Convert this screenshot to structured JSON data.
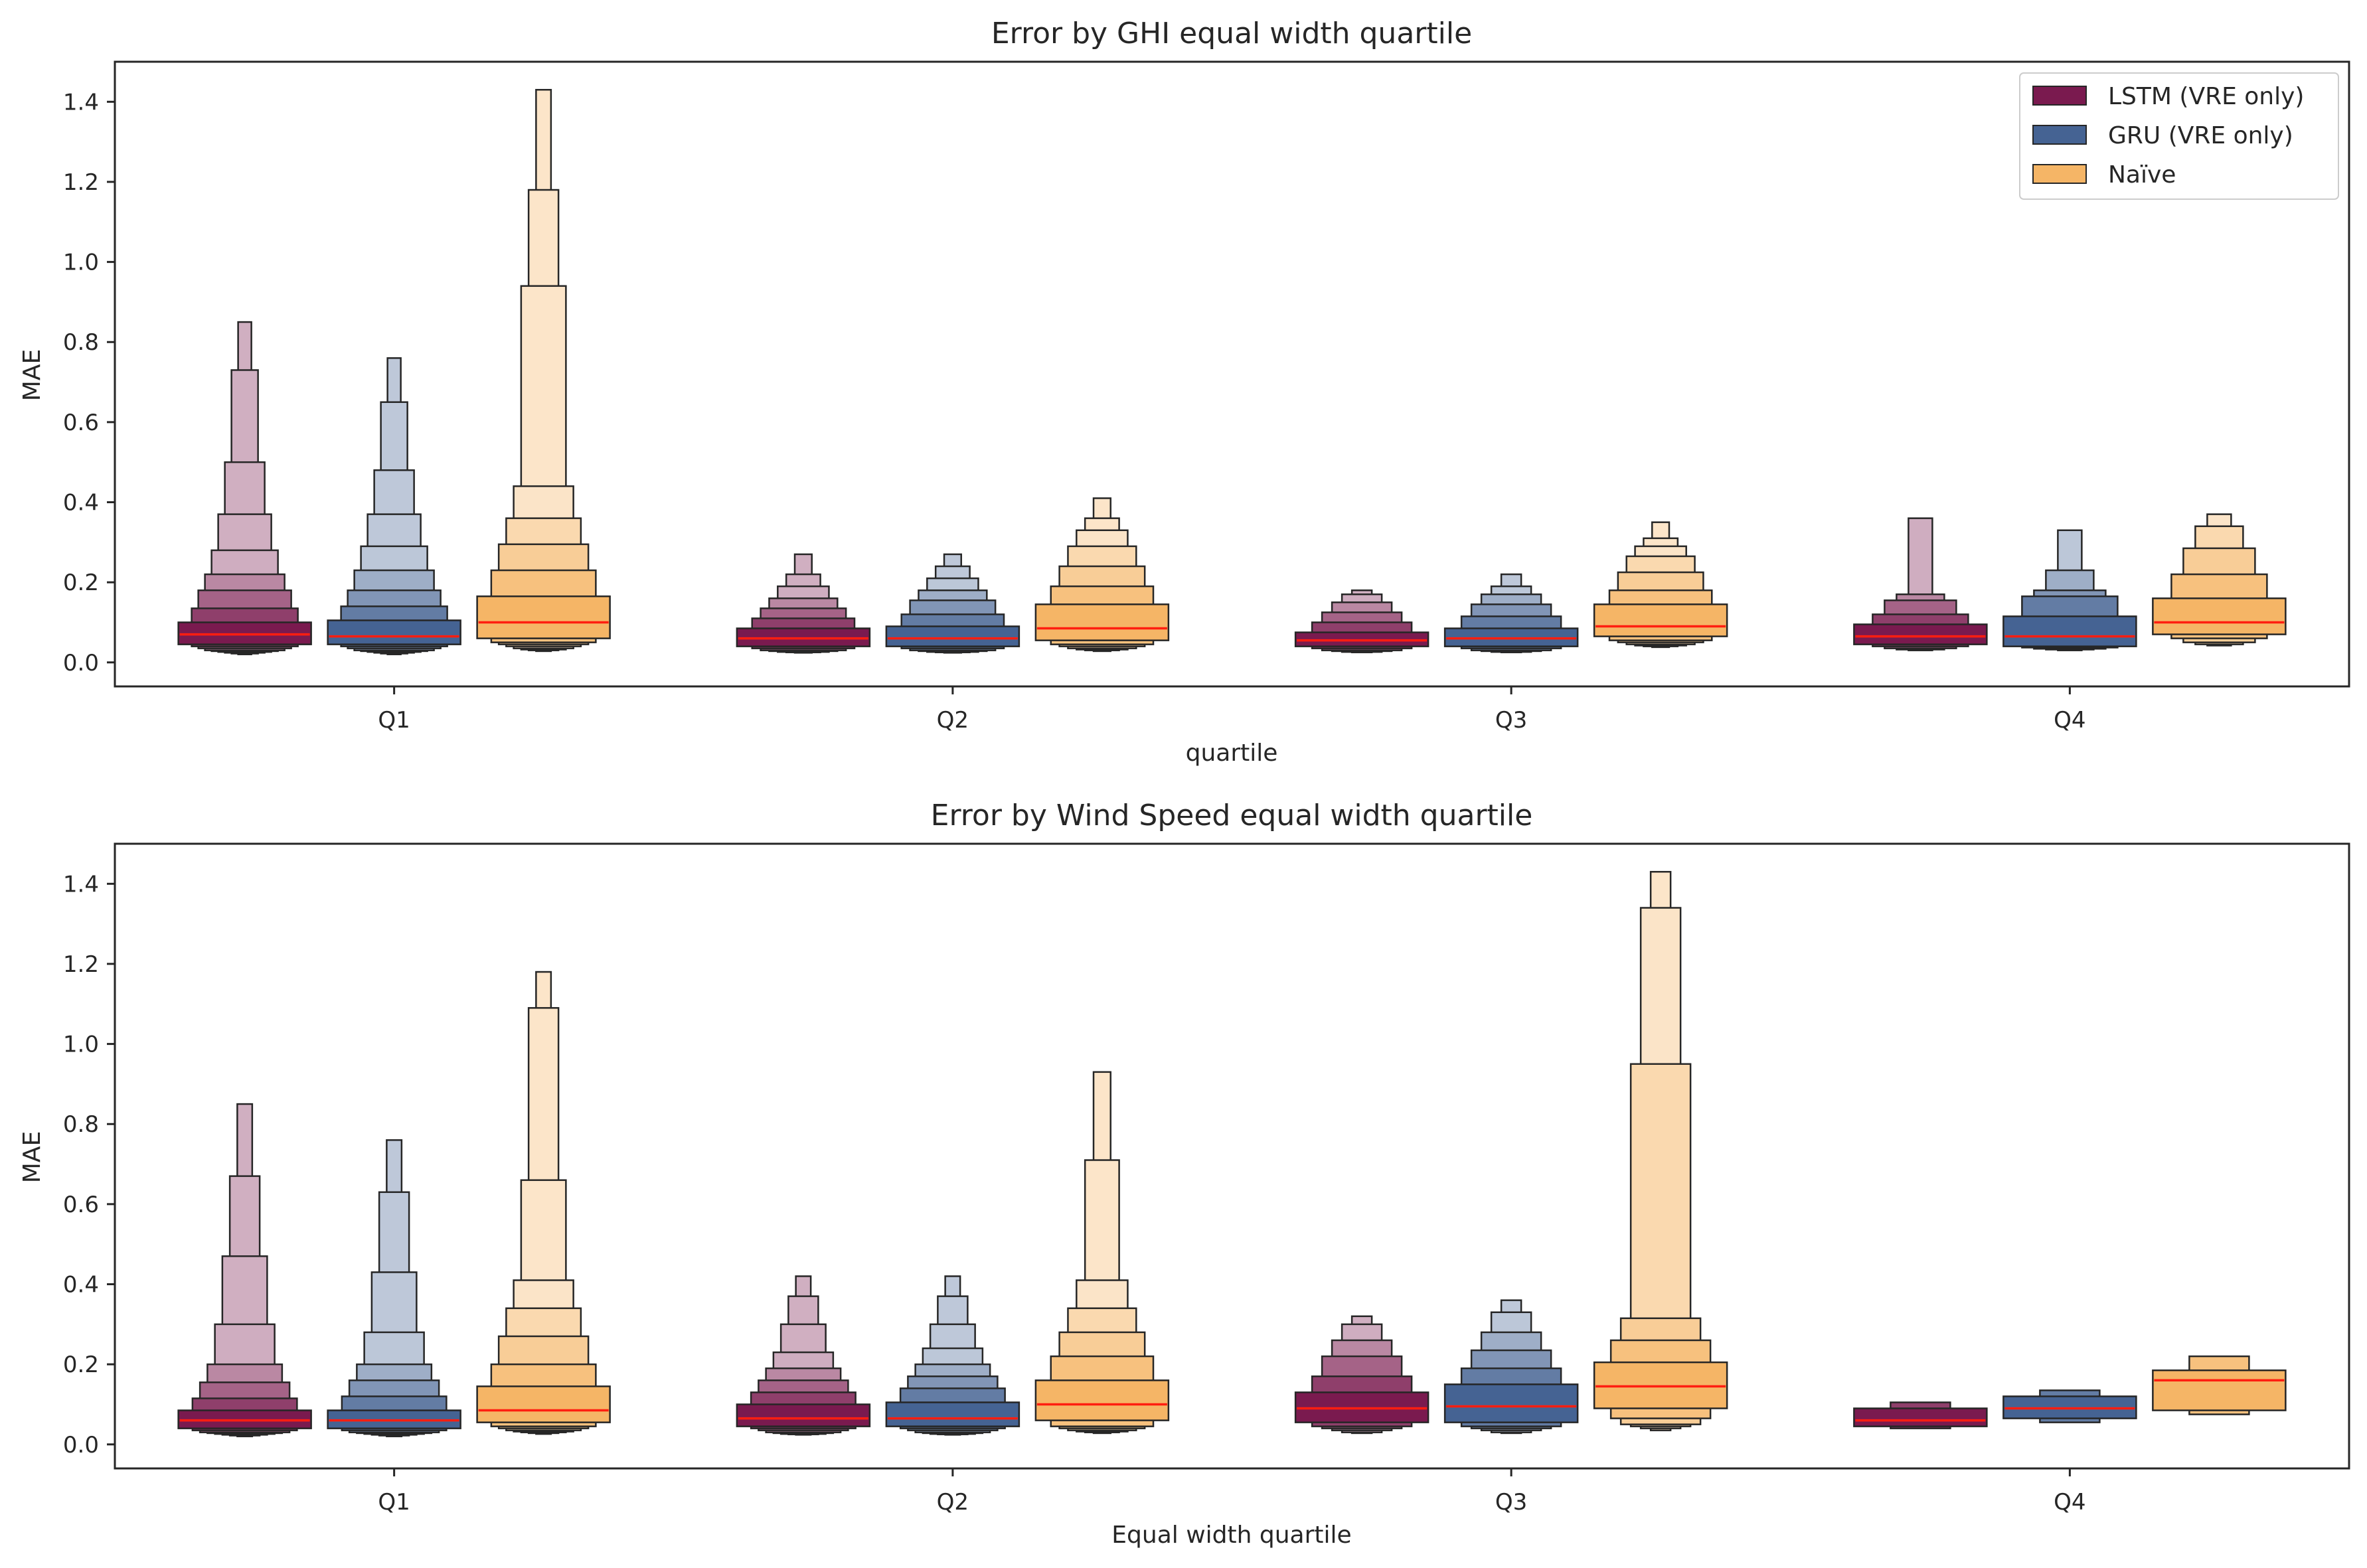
{
  "legend": {
    "placement": "upper right",
    "entries": [
      {
        "label": "LSTM (VRE only)",
        "color": "#7a1a4f"
      },
      {
        "label": "GRU (VRE only)",
        "color": "#456393"
      },
      {
        "label": "Naïve",
        "color": "#f5b566"
      }
    ]
  },
  "median_color": "#ff1e10",
  "chart_data": [
    {
      "type": "boxen",
      "title": "Error by GHI equal width quartile",
      "xlabel": "quartile",
      "ylabel": "MAE",
      "ylim": [
        -0.06,
        1.5
      ],
      "yticks": [
        "0.0",
        "0.2",
        "0.4",
        "0.6",
        "0.8",
        "1.0",
        "1.2",
        "1.4"
      ],
      "categories": [
        "Q1",
        "Q2",
        "Q3",
        "Q4"
      ],
      "series": [
        {
          "name": "LSTM (VRE only)",
          "values": [
            {
              "median": 0.07,
              "levels": [
                [
                  0.045,
                  0.1
                ],
                [
                  0.04,
                  0.135
                ],
                [
                  0.035,
                  0.18
                ],
                [
                  0.03,
                  0.22
                ],
                [
                  0.028,
                  0.28
                ],
                [
                  0.026,
                  0.37
                ],
                [
                  0.024,
                  0.5
                ],
                [
                  0.022,
                  0.73
                ],
                [
                  0.02,
                  0.85
                ]
              ]
            },
            {
              "median": 0.06,
              "levels": [
                [
                  0.04,
                  0.085
                ],
                [
                  0.035,
                  0.11
                ],
                [
                  0.03,
                  0.135
                ],
                [
                  0.028,
                  0.16
                ],
                [
                  0.026,
                  0.19
                ],
                [
                  0.025,
                  0.22
                ],
                [
                  0.024,
                  0.27
                ]
              ]
            },
            {
              "median": 0.055,
              "levels": [
                [
                  0.04,
                  0.075
                ],
                [
                  0.035,
                  0.1
                ],
                [
                  0.03,
                  0.125
                ],
                [
                  0.028,
                  0.15
                ],
                [
                  0.026,
                  0.17
                ],
                [
                  0.025,
                  0.18
                ]
              ]
            },
            {
              "median": 0.065,
              "levels": [
                [
                  0.045,
                  0.095
                ],
                [
                  0.04,
                  0.12
                ],
                [
                  0.035,
                  0.155
                ],
                [
                  0.032,
                  0.17
                ],
                [
                  0.03,
                  0.36
                ]
              ]
            }
          ]
        },
        {
          "name": "GRU (VRE only)",
          "values": [
            {
              "median": 0.065,
              "levels": [
                [
                  0.045,
                  0.105
                ],
                [
                  0.04,
                  0.14
                ],
                [
                  0.035,
                  0.18
                ],
                [
                  0.03,
                  0.23
                ],
                [
                  0.028,
                  0.29
                ],
                [
                  0.026,
                  0.37
                ],
                [
                  0.024,
                  0.48
                ],
                [
                  0.022,
                  0.65
                ],
                [
                  0.02,
                  0.76
                ]
              ]
            },
            {
              "median": 0.06,
              "levels": [
                [
                  0.04,
                  0.09
                ],
                [
                  0.035,
                  0.12
                ],
                [
                  0.03,
                  0.155
                ],
                [
                  0.028,
                  0.18
                ],
                [
                  0.026,
                  0.21
                ],
                [
                  0.025,
                  0.24
                ],
                [
                  0.024,
                  0.27
                ]
              ]
            },
            {
              "median": 0.06,
              "levels": [
                [
                  0.04,
                  0.085
                ],
                [
                  0.035,
                  0.115
                ],
                [
                  0.03,
                  0.145
                ],
                [
                  0.028,
                  0.17
                ],
                [
                  0.026,
                  0.19
                ],
                [
                  0.025,
                  0.22
                ]
              ]
            },
            {
              "median": 0.065,
              "levels": [
                [
                  0.04,
                  0.115
                ],
                [
                  0.037,
                  0.165
                ],
                [
                  0.034,
                  0.18
                ],
                [
                  0.032,
                  0.23
                ],
                [
                  0.03,
                  0.33
                ]
              ]
            }
          ]
        },
        {
          "name": "Naïve",
          "values": [
            {
              "median": 0.1,
              "levels": [
                [
                  0.06,
                  0.165
                ],
                [
                  0.05,
                  0.23
                ],
                [
                  0.045,
                  0.295
                ],
                [
                  0.04,
                  0.36
                ],
                [
                  0.035,
                  0.44
                ],
                [
                  0.032,
                  0.94
                ],
                [
                  0.03,
                  1.18
                ],
                [
                  0.028,
                  1.43
                ]
              ]
            },
            {
              "median": 0.085,
              "levels": [
                [
                  0.055,
                  0.145
                ],
                [
                  0.045,
                  0.19
                ],
                [
                  0.04,
                  0.24
                ],
                [
                  0.035,
                  0.29
                ],
                [
                  0.032,
                  0.33
                ],
                [
                  0.03,
                  0.36
                ],
                [
                  0.028,
                  0.41
                ]
              ]
            },
            {
              "median": 0.09,
              "levels": [
                [
                  0.065,
                  0.145
                ],
                [
                  0.055,
                  0.18
                ],
                [
                  0.05,
                  0.225
                ],
                [
                  0.045,
                  0.265
                ],
                [
                  0.042,
                  0.29
                ],
                [
                  0.04,
                  0.31
                ],
                [
                  0.038,
                  0.35
                ]
              ]
            },
            {
              "median": 0.1,
              "levels": [
                [
                  0.07,
                  0.16
                ],
                [
                  0.06,
                  0.22
                ],
                [
                  0.05,
                  0.285
                ],
                [
                  0.045,
                  0.34
                ],
                [
                  0.042,
                  0.37
                ]
              ]
            }
          ]
        }
      ]
    },
    {
      "type": "boxen",
      "title": "Error by Wind Speed equal width quartile",
      "xlabel": "Equal width quartile",
      "ylabel": "MAE",
      "ylim": [
        -0.06,
        1.5
      ],
      "yticks": [
        "0.0",
        "0.2",
        "0.4",
        "0.6",
        "0.8",
        "1.0",
        "1.2",
        "1.4"
      ],
      "categories": [
        "Q1",
        "Q2",
        "Q3",
        "Q4"
      ],
      "series": [
        {
          "name": "LSTM (VRE only)",
          "values": [
            {
              "median": 0.06,
              "levels": [
                [
                  0.04,
                  0.085
                ],
                [
                  0.035,
                  0.115
                ],
                [
                  0.03,
                  0.155
                ],
                [
                  0.028,
                  0.2
                ],
                [
                  0.026,
                  0.3
                ],
                [
                  0.024,
                  0.47
                ],
                [
                  0.022,
                  0.67
                ],
                [
                  0.02,
                  0.85
                ]
              ]
            },
            {
              "median": 0.065,
              "levels": [
                [
                  0.045,
                  0.1
                ],
                [
                  0.04,
                  0.13
                ],
                [
                  0.035,
                  0.16
                ],
                [
                  0.03,
                  0.19
                ],
                [
                  0.028,
                  0.23
                ],
                [
                  0.026,
                  0.3
                ],
                [
                  0.025,
                  0.37
                ],
                [
                  0.024,
                  0.42
                ]
              ]
            },
            {
              "median": 0.09,
              "levels": [
                [
                  0.055,
                  0.13
                ],
                [
                  0.045,
                  0.17
                ],
                [
                  0.04,
                  0.22
                ],
                [
                  0.035,
                  0.26
                ],
                [
                  0.03,
                  0.3
                ],
                [
                  0.028,
                  0.32
                ]
              ]
            },
            {
              "median": 0.06,
              "levels": [
                [
                  0.045,
                  0.09
                ],
                [
                  0.04,
                  0.105
                ]
              ]
            }
          ]
        },
        {
          "name": "GRU (VRE only)",
          "values": [
            {
              "median": 0.06,
              "levels": [
                [
                  0.04,
                  0.085
                ],
                [
                  0.035,
                  0.12
                ],
                [
                  0.03,
                  0.16
                ],
                [
                  0.028,
                  0.2
                ],
                [
                  0.026,
                  0.28
                ],
                [
                  0.024,
                  0.43
                ],
                [
                  0.022,
                  0.63
                ],
                [
                  0.02,
                  0.76
                ]
              ]
            },
            {
              "median": 0.065,
              "levels": [
                [
                  0.045,
                  0.105
                ],
                [
                  0.04,
                  0.14
                ],
                [
                  0.035,
                  0.17
                ],
                [
                  0.03,
                  0.2
                ],
                [
                  0.028,
                  0.24
                ],
                [
                  0.026,
                  0.3
                ],
                [
                  0.025,
                  0.37
                ],
                [
                  0.024,
                  0.42
                ]
              ]
            },
            {
              "median": 0.095,
              "levels": [
                [
                  0.055,
                  0.15
                ],
                [
                  0.045,
                  0.19
                ],
                [
                  0.04,
                  0.235
                ],
                [
                  0.035,
                  0.28
                ],
                [
                  0.03,
                  0.33
                ],
                [
                  0.028,
                  0.36
                ]
              ]
            },
            {
              "median": 0.09,
              "levels": [
                [
                  0.065,
                  0.12
                ],
                [
                  0.055,
                  0.135
                ]
              ]
            }
          ]
        },
        {
          "name": "Naïve",
          "values": [
            {
              "median": 0.085,
              "levels": [
                [
                  0.055,
                  0.145
                ],
                [
                  0.045,
                  0.2
                ],
                [
                  0.04,
                  0.27
                ],
                [
                  0.035,
                  0.34
                ],
                [
                  0.032,
                  0.41
                ],
                [
                  0.03,
                  0.66
                ],
                [
                  0.028,
                  1.09
                ],
                [
                  0.026,
                  1.18
                ]
              ]
            },
            {
              "median": 0.1,
              "levels": [
                [
                  0.06,
                  0.16
                ],
                [
                  0.045,
                  0.22
                ],
                [
                  0.04,
                  0.28
                ],
                [
                  0.035,
                  0.34
                ],
                [
                  0.032,
                  0.41
                ],
                [
                  0.03,
                  0.71
                ],
                [
                  0.028,
                  0.93
                ]
              ]
            },
            {
              "median": 0.145,
              "levels": [
                [
                  0.09,
                  0.205
                ],
                [
                  0.065,
                  0.26
                ],
                [
                  0.05,
                  0.315
                ],
                [
                  0.045,
                  0.95
                ],
                [
                  0.04,
                  1.34
                ],
                [
                  0.035,
                  1.43
                ]
              ]
            },
            {
              "median": 0.16,
              "levels": [
                [
                  0.085,
                  0.185
                ],
                [
                  0.075,
                  0.22
                ]
              ]
            }
          ]
        }
      ]
    }
  ]
}
